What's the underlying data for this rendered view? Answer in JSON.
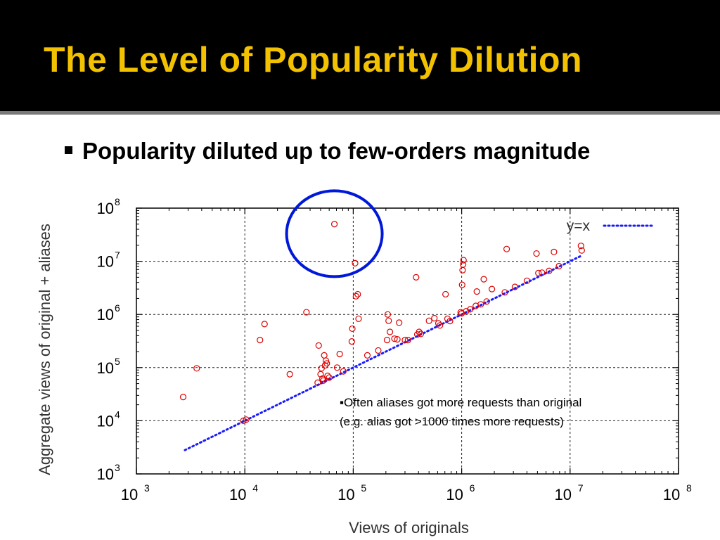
{
  "slide": {
    "title": "The Level of Popularity Dilution",
    "bullet": "Popularity diluted up to few-orders magnitude"
  },
  "colors": {
    "title_band": "#000000",
    "title_text": "#f2c200",
    "points": "#dd0000",
    "ref_line": "#1a1aff",
    "highlight_circle": "#0018d8"
  },
  "chart_data": {
    "type": "scatter",
    "xlabel": "Views of originals",
    "ylabel": "Aggregate views of original + aliases",
    "xscale": "log",
    "yscale": "log",
    "xlim": [
      1000,
      100000000
    ],
    "ylim": [
      1000,
      100000000
    ],
    "x_ticks": [
      {
        "base": "10",
        "exp": "3"
      },
      {
        "base": "10",
        "exp": "4"
      },
      {
        "base": "10",
        "exp": "5"
      },
      {
        "base": "10",
        "exp": "6"
      },
      {
        "base": "10",
        "exp": "7"
      },
      {
        "base": "10",
        "exp": "8"
      }
    ],
    "y_ticks": [
      {
        "base": "10",
        "exp": "3"
      },
      {
        "base": "10",
        "exp": "4"
      },
      {
        "base": "10",
        "exp": "5"
      },
      {
        "base": "10",
        "exp": "6"
      },
      {
        "base": "10",
        "exp": "7"
      },
      {
        "base": "10",
        "exp": "8"
      }
    ],
    "grid": true,
    "legend": {
      "position": "top-right",
      "entries": [
        {
          "label": "y=x",
          "style": "dotted",
          "color": "#1a1aff"
        }
      ]
    },
    "reference_line": {
      "label": "y=x",
      "from": 2800,
      "to": 12600000
    },
    "annotation": {
      "lines": [
        "▪Often aliases got more requests than original",
        "(e.g. alias got >1000 times more requests)"
      ]
    },
    "highlight": {
      "shape": "circle",
      "center": [
        67000,
        33000000
      ]
    },
    "series": [
      {
        "marker": "open-circle",
        "points": [
          [
            2700,
            28000
          ],
          [
            3600,
            97000
          ],
          [
            9700,
            10000
          ],
          [
            10300,
            10500
          ],
          [
            13800,
            330000
          ],
          [
            15200,
            660000
          ],
          [
            26000,
            75000
          ],
          [
            37000,
            1100000
          ],
          [
            47000,
            52000
          ],
          [
            48000,
            260000
          ],
          [
            50000,
            75000
          ],
          [
            51000,
            97000
          ],
          [
            52000,
            62000
          ],
          [
            53000,
            57000
          ],
          [
            54000,
            170000
          ],
          [
            55000,
            110000
          ],
          [
            56000,
            135000
          ],
          [
            57000,
            120000
          ],
          [
            58000,
            70000
          ],
          [
            60000,
            65000
          ],
          [
            67000,
            50000000
          ],
          [
            71000,
            100000
          ],
          [
            75000,
            180000
          ],
          [
            81000,
            85000
          ],
          [
            97000,
            310000
          ],
          [
            98000,
            540000
          ],
          [
            104000,
            9200000
          ],
          [
            106000,
            2200000
          ],
          [
            110000,
            2400000
          ],
          [
            112000,
            830000
          ],
          [
            135000,
            170000
          ],
          [
            170000,
            210000
          ],
          [
            205000,
            330000
          ],
          [
            208000,
            1000000
          ],
          [
            212000,
            760000
          ],
          [
            218000,
            470000
          ],
          [
            240000,
            350000
          ],
          [
            255000,
            340000
          ],
          [
            265000,
            700000
          ],
          [
            300000,
            330000
          ],
          [
            320000,
            330000
          ],
          [
            380000,
            5000000
          ],
          [
            390000,
            420000
          ],
          [
            405000,
            470000
          ],
          [
            420000,
            430000
          ],
          [
            500000,
            760000
          ],
          [
            560000,
            850000
          ],
          [
            610000,
            680000
          ],
          [
            630000,
            620000
          ],
          [
            710000,
            2400000
          ],
          [
            740000,
            830000
          ],
          [
            780000,
            750000
          ],
          [
            980000,
            1100000
          ],
          [
            1000000,
            1050000
          ],
          [
            1010000,
            3600000
          ],
          [
            1020000,
            6800000
          ],
          [
            1030000,
            8700000
          ],
          [
            1040000,
            10500000
          ],
          [
            1100000,
            1150000
          ],
          [
            1200000,
            1250000
          ],
          [
            1350000,
            1450000
          ],
          [
            1380000,
            2700000
          ],
          [
            1500000,
            1550000
          ],
          [
            1600000,
            4600000
          ],
          [
            1700000,
            1750000
          ],
          [
            1900000,
            3000000
          ],
          [
            2500000,
            2600000
          ],
          [
            2600000,
            17000000
          ],
          [
            3100000,
            3300000
          ],
          [
            4000000,
            4300000
          ],
          [
            4900000,
            14000000
          ],
          [
            5100000,
            6000000
          ],
          [
            5500000,
            6100000
          ],
          [
            6400000,
            6600000
          ],
          [
            7100000,
            15000000
          ],
          [
            7900000,
            8100000
          ],
          [
            12600000,
            19500000
          ],
          [
            12800000,
            16000000
          ]
        ]
      }
    ]
  }
}
